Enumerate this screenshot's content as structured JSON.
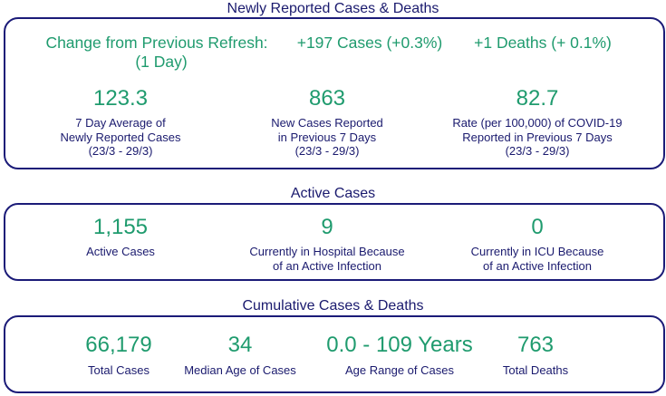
{
  "sections": {
    "newly": {
      "heading": "Newly Reported Cases & Deaths",
      "change_label": "Change from Previous Refresh:",
      "change_period": "(1 Day)",
      "cases_change": "+197 Cases (+0.3%)",
      "deaths_change": "+1 Deaths (+ 0.1%)",
      "stats": [
        {
          "value": "123.3",
          "label": "7 Day Average of Newly Reported Cases (23/3 - 29/3)",
          "lines": [
            "7 Day Average of",
            "Newly Reported Cases",
            "(23/3 - 29/3)"
          ]
        },
        {
          "value": "863",
          "label": "New Cases Reported in Previous 7 Days (23/3 - 29/3)",
          "lines": [
            "New Cases Reported",
            "in Previous 7 Days",
            "(23/3 - 29/3)"
          ]
        },
        {
          "value": "82.7",
          "label": "Rate (per 100,000) of COVID-19 Reported in Previous 7 Days (23/3 - 29/3)",
          "lines": [
            "Rate (per 100,000) of COVID-19",
            "Reported in Previous 7 Days",
            "(23/3 - 29/3)"
          ]
        }
      ]
    },
    "active": {
      "heading": "Active Cases",
      "stats": [
        {
          "value": "1,155",
          "lines": [
            "Active Cases"
          ]
        },
        {
          "value": "9",
          "lines": [
            "Currently in Hospital Because",
            "of an Active Infection"
          ]
        },
        {
          "value": "0",
          "lines": [
            "Currently in ICU Because",
            "of an Active Infection"
          ]
        }
      ]
    },
    "cumulative": {
      "heading": "Cumulative Cases & Deaths",
      "stats": [
        {
          "value": "66,179",
          "lines": [
            "Total Cases"
          ]
        },
        {
          "value": "34",
          "lines": [
            "Median Age of Cases"
          ]
        },
        {
          "value": "0.0 - 109 Years",
          "lines": [
            "Age Range of Cases"
          ]
        },
        {
          "value": "763",
          "lines": [
            "Total Deaths"
          ]
        }
      ]
    }
  },
  "colors": {
    "accent_green": "#1f9b6e",
    "navy": "#1a1a6e",
    "border": "#1b1b78"
  }
}
